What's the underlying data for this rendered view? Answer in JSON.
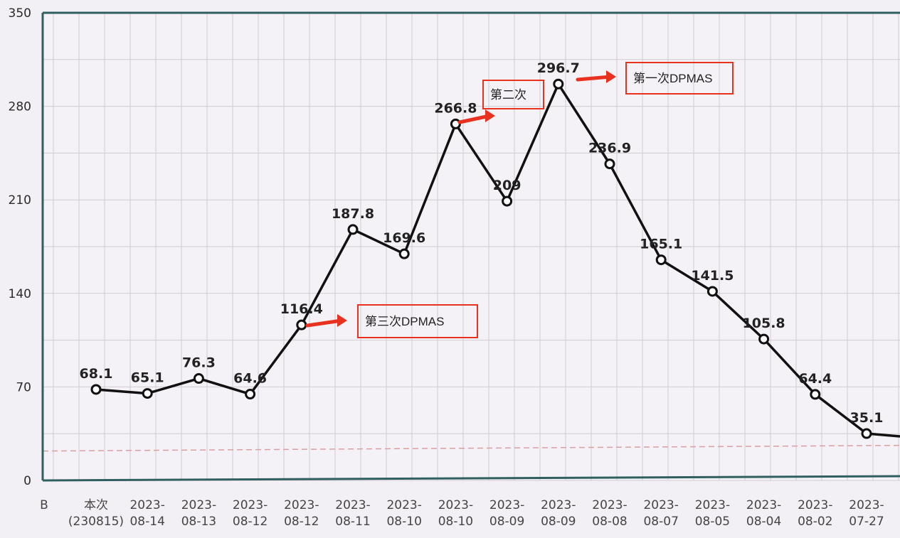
{
  "chart_data": {
    "type": "line",
    "categories": [
      [
        "本次",
        "(230815)"
      ],
      [
        "2023-",
        "08-14"
      ],
      [
        "2023-",
        "08-13"
      ],
      [
        "2023-",
        "08-12"
      ],
      [
        "2023-",
        "08-12"
      ],
      [
        "2023-",
        "08-11"
      ],
      [
        "2023-",
        "08-10"
      ],
      [
        "2023-",
        "08-10"
      ],
      [
        "2023-",
        "08-09"
      ],
      [
        "2023-",
        "08-09"
      ],
      [
        "2023-",
        "08-08"
      ],
      [
        "2023-",
        "08-07"
      ],
      [
        "2023-",
        "08-05"
      ],
      [
        "2023-",
        "08-04"
      ],
      [
        "2023-",
        "08-02"
      ],
      [
        "2023-",
        "07-27"
      ]
    ],
    "values": [
      68.1,
      65.1,
      76.3,
      64.6,
      116.4,
      187.8,
      169.6,
      266.8,
      209,
      296.7,
      236.9,
      165.1,
      141.5,
      105.8,
      64.4,
      35.1
    ],
    "data_labels": [
      "68.1",
      "65.1",
      "76.3",
      "64.6",
      "116.4",
      "187.8",
      "169.6",
      "266.8",
      "209",
      "296.7",
      "236.9",
      "165.1",
      "141.5",
      "105.8",
      "64.4",
      "35.1"
    ],
    "trailing_value": 33,
    "y_ticks": [
      "0",
      "70",
      "140",
      "210",
      "280",
      "350"
    ],
    "ylim": [
      0,
      350
    ],
    "x_axis_unit": "B",
    "reference_line": 22,
    "grid": true,
    "line_color": "#111111",
    "reference_color": "#d9a0a0",
    "annotation_color": "#e8311f",
    "annotations": [
      {
        "text": "第一次DPMAS",
        "point_index": 9
      },
      {
        "text": "第二次",
        "point_index": 7
      },
      {
        "text": "第三次DPMAS",
        "point_index": 4
      }
    ]
  }
}
